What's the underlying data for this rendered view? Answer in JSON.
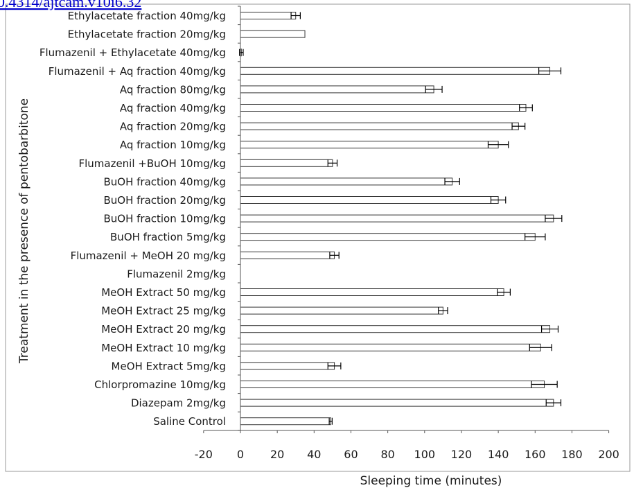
{
  "header_fragment": "0.4314/ajtcam.v10i6.32",
  "chart_data": {
    "type": "bar",
    "orientation": "horizontal",
    "title": "",
    "xlabel": "Sleeping time (minutes)",
    "ylabel": "Treatment in the presence of pentobarbitone",
    "xlim": [
      -20,
      200
    ],
    "xticks": [
      -20,
      0,
      20,
      40,
      60,
      80,
      100,
      120,
      140,
      160,
      180,
      200
    ],
    "grid": false,
    "legend": "none",
    "categories": [
      "Ethylacetate fraction 40mg/kg",
      "Ethylacetate fraction 20mg/kg",
      "Flumazenil + Ethylacetate 40mg/kg",
      "Flumazenil + Aq fraction 40mg/kg",
      "Aq fraction 80mg/kg",
      "Aq fraction 40mg/kg",
      "Aq fraction 20mg/kg",
      "Aq fraction 10mg/kg",
      "Flumazenil +BuOH 10mg/kg",
      "BuOH fraction 40mg/kg",
      "BuOH fraction 20mg/kg",
      "BuOH fraction 10mg/kg",
      "BuOH fraction 5mg/kg",
      "Flumazenil + MeOH 20 mg/kg",
      "Flumazenil 2mg/kg",
      "MeOH Extract 50 mg/kg",
      "MeOH Extract 25 mg/kg",
      "MeOH Extract 20 mg/kg",
      "MeOH Extract 10 mg/kg",
      "MeOH Extract 5mg/kg",
      "Chlorpromazine 10mg/kg",
      "Diazepam 2mg/kg",
      "Saline Control"
    ],
    "values": [
      30,
      35,
      0.5,
      168,
      105,
      155,
      151,
      140,
      50,
      115,
      140,
      170,
      160,
      51,
      0,
      143,
      110,
      168,
      163,
      51,
      165,
      170,
      49
    ],
    "errors": [
      2.5,
      0,
      1,
      6,
      4.5,
      3.5,
      3.5,
      5.5,
      2.5,
      4,
      4,
      4.5,
      5.5,
      2.5,
      0,
      3.5,
      2.5,
      4.5,
      6,
      3.5,
      7,
      4,
      0.8
    ],
    "bar_color": "#ffffff",
    "bar_stroke": "#333333"
  }
}
